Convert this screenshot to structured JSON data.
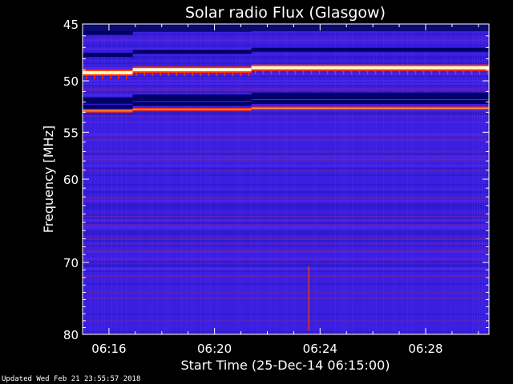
{
  "chart_data": {
    "type": "heatmap",
    "title": "Solar radio Flux (Glasgow)",
    "xlabel": "Start Time (25-Dec-14 06:15:00)",
    "ylabel": "Frequency [MHz]",
    "x_ticks": [
      {
        "label": "06:16",
        "minutes": 1
      },
      {
        "label": "06:20",
        "minutes": 5
      },
      {
        "label": "06:24",
        "minutes": 9
      },
      {
        "label": "06:28",
        "minutes": 13
      }
    ],
    "xlim_minutes_after_start": [
      0,
      15.4
    ],
    "y_ticks": [
      45,
      50,
      55,
      60,
      70,
      80
    ],
    "ylim": [
      45,
      80
    ],
    "yscale": "log",
    "y_inverted": true,
    "colors": {
      "background": "#000000",
      "base": "#3a1fe0",
      "dark_band": "#000066",
      "hot_band": "#ffffd0",
      "red_band": "#ff3000",
      "axes": "#ffffff"
    },
    "bright_bands_mhz": [
      48.8,
      52.6
    ],
    "dark_bands_mhz": [
      45.3,
      47.2,
      51.3,
      52.0
    ],
    "step_changes_minutes": [
      1.9,
      6.4
    ]
  },
  "footer": "Updated Wed Feb 21 23:55:57 2018"
}
